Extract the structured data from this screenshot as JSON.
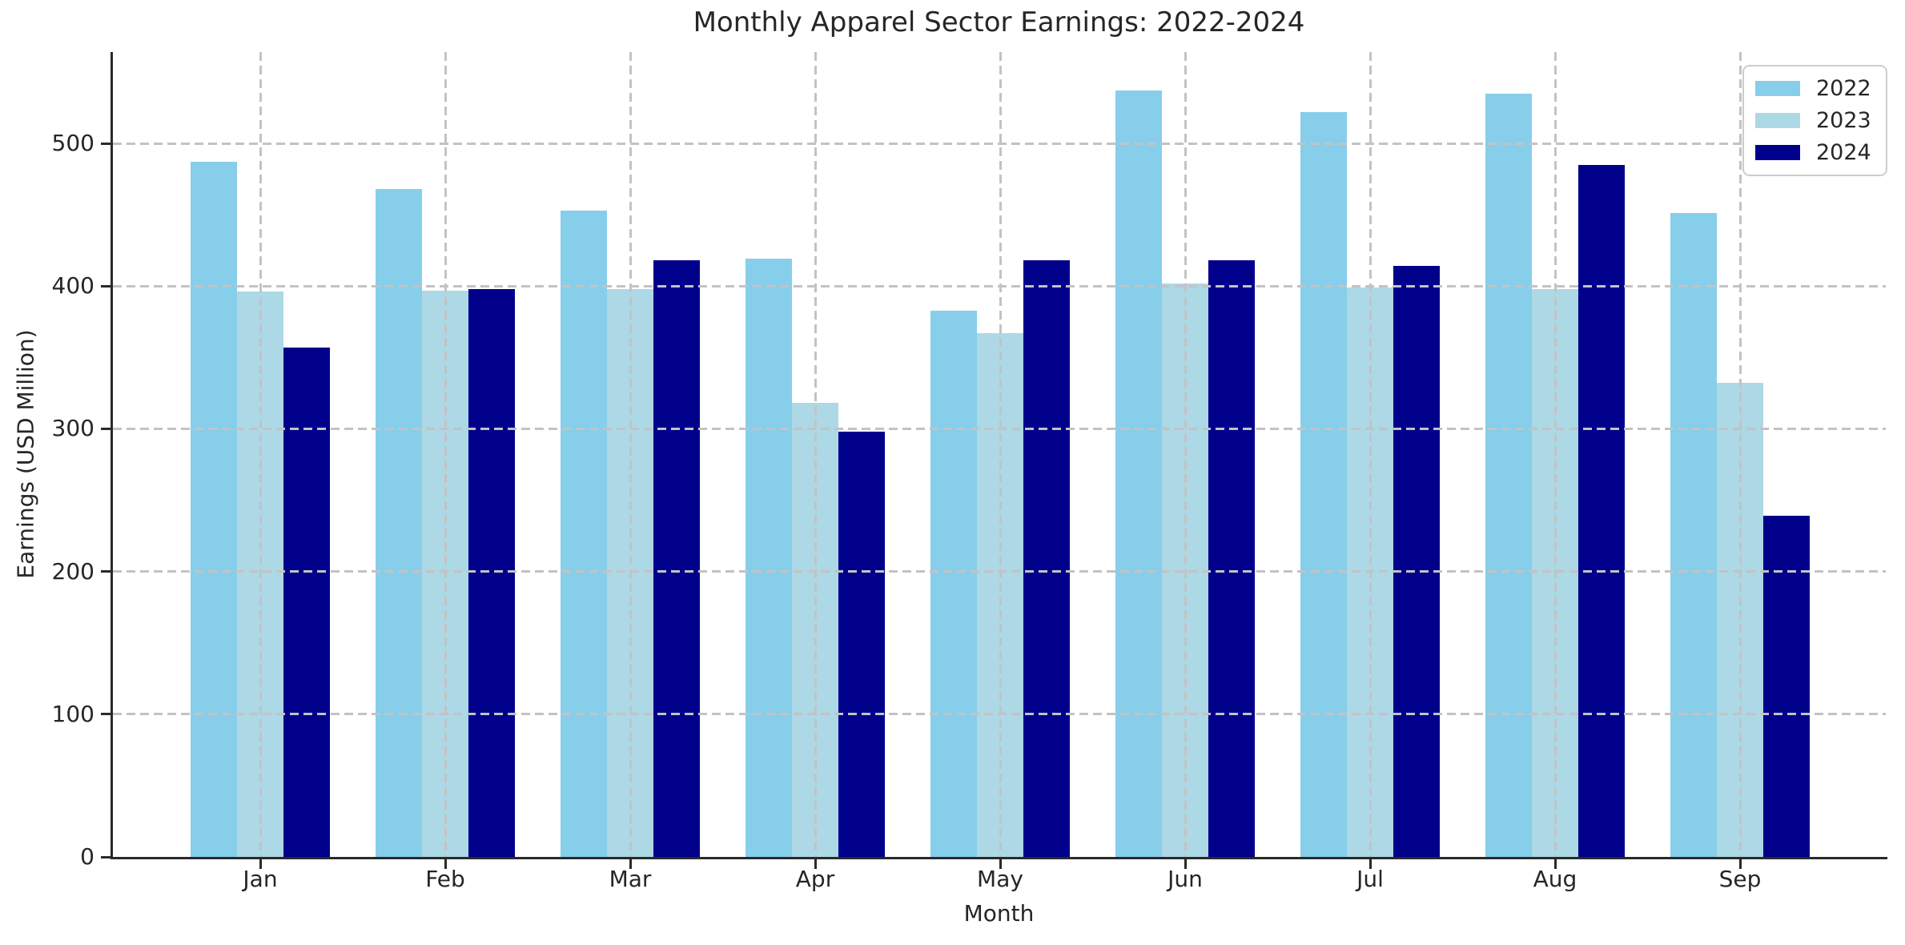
{
  "chart_data": {
    "type": "bar",
    "title": "Monthly Apparel Sector Earnings: 2022-2024",
    "xlabel": "Month",
    "ylabel": "Earnings (USD Million)",
    "categories": [
      "Jan",
      "Feb",
      "Mar",
      "Apr",
      "May",
      "Jun",
      "Jul",
      "Aug",
      "Sep"
    ],
    "series": [
      {
        "name": "2022",
        "color": "#87CEEB",
        "values": [
          487,
          468,
          453,
          419,
          383,
          537,
          522,
          535,
          451
        ]
      },
      {
        "name": "2023",
        "color": "#ADD8E6",
        "values": [
          396,
          397,
          398,
          318,
          367,
          402,
          399,
          398,
          332
        ]
      },
      {
        "name": "2024",
        "color": "#00008B",
        "values": [
          357,
          398,
          418,
          298,
          418,
          418,
          414,
          485,
          239
        ]
      }
    ],
    "ylim": [
      0,
      564
    ],
    "yticks": [
      0,
      100,
      200,
      300,
      400,
      500
    ],
    "grid": {
      "horizontal": true,
      "vertical": true,
      "style": "dashed",
      "color": "#c3c3c3",
      "above_bars": true
    },
    "legend": {
      "position": "upper right",
      "entries": [
        "2022",
        "2023",
        "2024"
      ]
    }
  },
  "colors": {
    "axis_spine": "#2a2a2a",
    "text": "#262626",
    "background": "#ffffff"
  }
}
